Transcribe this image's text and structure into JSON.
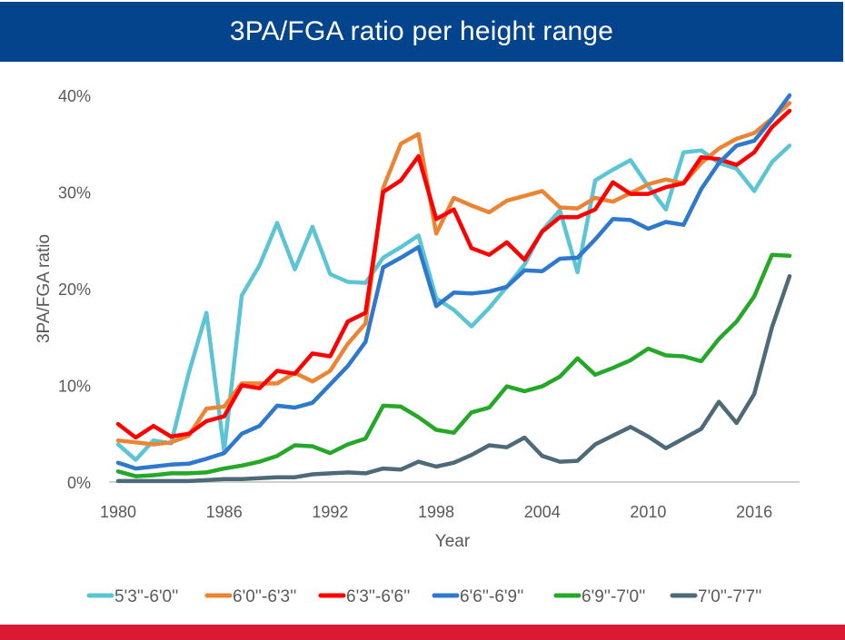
{
  "chart_data": {
    "type": "line",
    "title": "3PA/FGA ratio per height range",
    "xlabel": "Year",
    "ylabel": "3PA/FGA ratio",
    "ylim": [
      0,
      40
    ],
    "y_ticks": [
      "0%",
      "10%",
      "20%",
      "30%",
      "40%"
    ],
    "y_tick_values": [
      0,
      10,
      20,
      30,
      40
    ],
    "x_ticks": [
      "1980",
      "1986",
      "1992",
      "1998",
      "2004",
      "2010",
      "2016"
    ],
    "x_tick_values": [
      1980,
      1986,
      1992,
      1998,
      2004,
      2010,
      2016
    ],
    "xlim": [
      1980,
      2018
    ],
    "grid": false,
    "legend": "bottom",
    "x": [
      1980,
      1981,
      1982,
      1983,
      1984,
      1985,
      1986,
      1987,
      1988,
      1989,
      1990,
      1991,
      1992,
      1993,
      1994,
      1995,
      1996,
      1997,
      1998,
      1999,
      2000,
      2001,
      2002,
      2003,
      2004,
      2005,
      2006,
      2007,
      2008,
      2009,
      2010,
      2011,
      2012,
      2013,
      2014,
      2015,
      2016,
      2017,
      2018
    ],
    "series": [
      {
        "name": "5'3''-6'0''",
        "color": "#5BC5D6",
        "values": [
          3.9,
          2.3,
          4.3,
          4.0,
          11.3,
          17.5,
          3.2,
          19.3,
          22.4,
          26.8,
          22.0,
          26.4,
          21.5,
          20.7,
          20.6,
          23.2,
          24.3,
          25.5,
          19.0,
          17.8,
          16.1,
          18.0,
          20.2,
          22.5,
          26.0,
          28.1,
          21.7,
          31.2,
          32.3,
          33.3,
          30.6,
          28.2,
          34.1,
          34.3,
          33.0,
          32.4,
          30.1,
          33.1,
          34.8
        ]
      },
      {
        "name": "6'0''-6'3''",
        "color": "#EB8433",
        "values": [
          4.3,
          4.1,
          3.9,
          4.1,
          4.8,
          7.6,
          7.8,
          10.2,
          10.2,
          10.2,
          11.3,
          10.4,
          11.5,
          14.3,
          16.4,
          30.4,
          35.0,
          36.0,
          25.7,
          29.4,
          28.6,
          27.9,
          29.1,
          29.6,
          30.1,
          28.4,
          28.3,
          29.4,
          29.0,
          29.9,
          30.8,
          31.3,
          30.9,
          33.0,
          34.5,
          35.5,
          36.1,
          37.6,
          39.2
        ]
      },
      {
        "name": "6'3''-6'6''",
        "color": "#FF0000",
        "values": [
          6.0,
          4.6,
          5.8,
          4.7,
          5.0,
          6.3,
          6.8,
          10.0,
          9.7,
          11.5,
          11.2,
          13.3,
          13.0,
          16.6,
          17.5,
          30.0,
          31.2,
          33.7,
          27.2,
          28.2,
          24.2,
          23.5,
          24.8,
          23.0,
          25.9,
          27.4,
          27.4,
          28.2,
          31.0,
          29.8,
          29.8,
          30.5,
          30.9,
          33.6,
          33.4,
          32.8,
          34.1,
          36.7,
          38.4
        ]
      },
      {
        "name": "6'6''-6'9''",
        "color": "#2E78CD",
        "values": [
          2.0,
          1.4,
          1.6,
          1.8,
          1.9,
          2.4,
          3.0,
          5.0,
          5.8,
          7.9,
          7.7,
          8.2,
          10.1,
          12.0,
          14.5,
          22.2,
          23.2,
          24.3,
          18.2,
          19.6,
          19.5,
          19.7,
          20.2,
          21.9,
          21.8,
          23.1,
          23.2,
          25.1,
          27.2,
          27.1,
          26.2,
          26.9,
          26.6,
          30.3,
          33.0,
          34.8,
          35.3,
          37.5,
          40.0
        ]
      },
      {
        "name": "6'9''-7'0''",
        "color": "#25A828",
        "values": [
          1.1,
          0.6,
          0.7,
          0.9,
          0.9,
          1.0,
          1.4,
          1.7,
          2.1,
          2.7,
          3.8,
          3.7,
          3.0,
          3.9,
          4.5,
          7.9,
          7.8,
          6.7,
          5.4,
          5.1,
          7.2,
          7.7,
          9.9,
          9.4,
          9.9,
          10.9,
          12.8,
          11.1,
          11.8,
          12.6,
          13.8,
          13.1,
          13.0,
          12.5,
          14.8,
          16.6,
          19.2,
          23.5,
          23.4
        ]
      },
      {
        "name": "7'0''-7'7''",
        "color": "#4E6A78",
        "values": [
          0.1,
          0.1,
          0.1,
          0.1,
          0.1,
          0.2,
          0.3,
          0.3,
          0.4,
          0.5,
          0.5,
          0.8,
          0.9,
          1.0,
          0.9,
          1.4,
          1.3,
          2.1,
          1.6,
          2.0,
          2.8,
          3.8,
          3.6,
          4.6,
          2.7,
          2.1,
          2.2,
          3.9,
          4.8,
          5.7,
          4.7,
          3.5,
          4.5,
          5.5,
          8.3,
          6.1,
          9.1,
          16.0,
          21.3
        ]
      }
    ]
  },
  "colors": {
    "title_bar": "#03448C",
    "bottom_bar": "#DA1A32",
    "axis": "#D0D0D0"
  }
}
